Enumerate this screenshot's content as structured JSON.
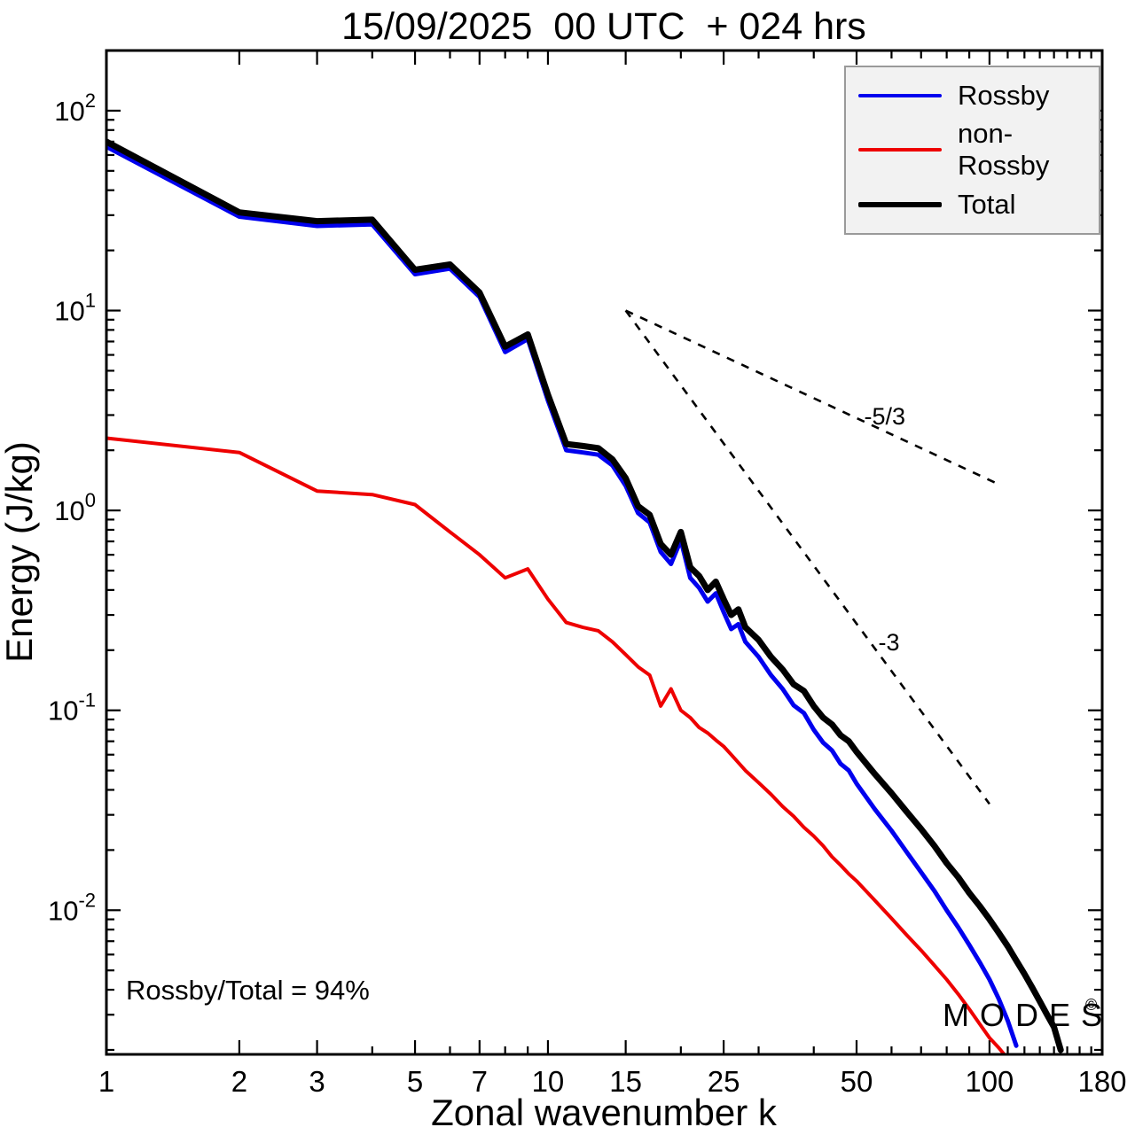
{
  "watermark": {
    "text": "MODES",
    "mark": "©"
  },
  "chart_data": {
    "type": "line",
    "title": "15/09/2025  00 UTC  + 024 hrs",
    "xlabel": "Zonal wavenumber k",
    "ylabel": "Energy (J/kg)",
    "annotation": "Rossby/Total = 94%",
    "x_scale": "log",
    "y_scale": "log",
    "xlim": [
      1,
      180
    ],
    "ylim": [
      0.0019,
      200
    ],
    "x_ticks": [
      1,
      2,
      3,
      5,
      7,
      10,
      15,
      25,
      50,
      100,
      180
    ],
    "x_minor_ticks": [
      4,
      6,
      8,
      9,
      20,
      30,
      40,
      60,
      70,
      80,
      90,
      110,
      120,
      130,
      140,
      150,
      160,
      170
    ],
    "y_ticks": [
      100,
      10,
      1,
      0.1,
      0.01
    ],
    "grid": false,
    "legend_position": "top-right",
    "axis_color": "#000000",
    "series": [
      {
        "name": "Rossby",
        "color": "#0000ee",
        "width": 5,
        "x": [
          1,
          2,
          3,
          4,
          5,
          6,
          7,
          8,
          9,
          10,
          11,
          12,
          13,
          14,
          15,
          16,
          17,
          18,
          19,
          20,
          21,
          22,
          23,
          24,
          25,
          26,
          27,
          28,
          30,
          32,
          34,
          36,
          38,
          40,
          42,
          44,
          46,
          48,
          50,
          55,
          60,
          65,
          70,
          75,
          80,
          85,
          90,
          95,
          100,
          105,
          110,
          115
        ],
        "y": [
          66,
          29.5,
          26.5,
          27,
          15.2,
          16.2,
          11.7,
          6.2,
          7.2,
          3.55,
          2.0,
          1.95,
          1.9,
          1.68,
          1.33,
          0.97,
          0.87,
          0.62,
          0.54,
          0.71,
          0.46,
          0.41,
          0.35,
          0.385,
          0.31,
          0.255,
          0.27,
          0.22,
          0.185,
          0.15,
          0.128,
          0.106,
          0.097,
          0.08,
          0.069,
          0.063,
          0.054,
          0.05,
          0.043,
          0.032,
          0.025,
          0.0195,
          0.0155,
          0.0125,
          0.01,
          0.0082,
          0.0067,
          0.0055,
          0.0045,
          0.0036,
          0.0028,
          0.0021
        ]
      },
      {
        "name": "non-Rossby",
        "color": "#ee0000",
        "width": 4,
        "x": [
          1,
          2,
          3,
          4,
          5,
          6,
          7,
          8,
          9,
          10,
          11,
          12,
          13,
          14,
          15,
          16,
          17,
          18,
          19,
          20,
          21,
          22,
          23,
          24,
          25,
          26,
          28,
          30,
          32,
          34,
          36,
          38,
          40,
          42,
          44,
          46,
          48,
          50,
          55,
          60,
          65,
          70,
          75,
          80,
          85,
          90,
          95,
          100,
          105,
          108
        ],
        "y": [
          2.3,
          1.95,
          1.25,
          1.2,
          1.07,
          0.78,
          0.6,
          0.46,
          0.51,
          0.36,
          0.275,
          0.26,
          0.25,
          0.22,
          0.19,
          0.165,
          0.15,
          0.105,
          0.128,
          0.1,
          0.092,
          0.082,
          0.077,
          0.071,
          0.066,
          0.06,
          0.05,
          0.0435,
          0.038,
          0.033,
          0.0295,
          0.026,
          0.0235,
          0.021,
          0.0185,
          0.0168,
          0.0152,
          0.014,
          0.0112,
          0.0091,
          0.0075,
          0.0063,
          0.0053,
          0.0045,
          0.0038,
          0.0032,
          0.0027,
          0.0023,
          0.00205,
          0.0019
        ]
      },
      {
        "name": "Total",
        "color": "#000000",
        "width": 7,
        "x": [
          1,
          2,
          3,
          4,
          5,
          6,
          7,
          8,
          9,
          10,
          11,
          12,
          13,
          14,
          15,
          16,
          17,
          18,
          19,
          20,
          21,
          22,
          23,
          24,
          25,
          26,
          27,
          28,
          30,
          32,
          34,
          36,
          38,
          40,
          42,
          44,
          46,
          48,
          50,
          55,
          60,
          65,
          70,
          75,
          80,
          85,
          90,
          95,
          100,
          105,
          110,
          115,
          120,
          125,
          130,
          135,
          140,
          145
        ],
        "y": [
          70,
          31,
          28,
          28.5,
          16,
          17,
          12.3,
          6.6,
          7.6,
          3.8,
          2.15,
          2.1,
          2.05,
          1.8,
          1.45,
          1.05,
          0.95,
          0.68,
          0.6,
          0.78,
          0.52,
          0.47,
          0.4,
          0.44,
          0.36,
          0.3,
          0.32,
          0.26,
          0.225,
          0.185,
          0.16,
          0.135,
          0.125,
          0.105,
          0.092,
          0.085,
          0.075,
          0.07,
          0.062,
          0.048,
          0.0385,
          0.031,
          0.0255,
          0.021,
          0.0172,
          0.0146,
          0.0122,
          0.0105,
          0.009,
          0.0077,
          0.0066,
          0.0056,
          0.0048,
          0.0041,
          0.0035,
          0.003,
          0.0026,
          0.002
        ]
      }
    ],
    "reference_lines": [
      {
        "label": "-5/3",
        "x": [
          15,
          105
        ],
        "y": [
          10,
          1.35
        ],
        "label_x": 52,
        "label_y": 2.7
      },
      {
        "label": "-3",
        "x": [
          15,
          100
        ],
        "y": [
          10,
          0.034
        ],
        "label_x": 56,
        "label_y": 0.2
      }
    ]
  }
}
